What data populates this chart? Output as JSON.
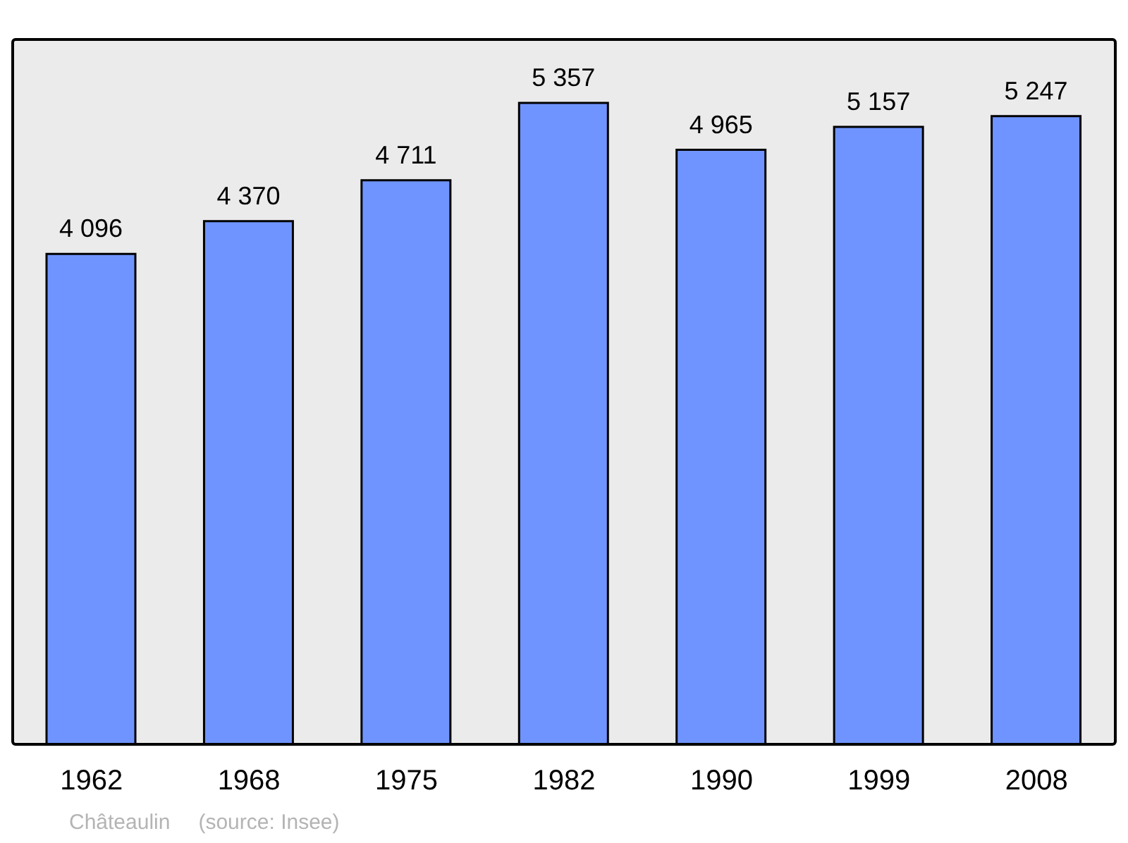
{
  "chart_data": {
    "type": "bar",
    "categories": [
      "1962",
      "1968",
      "1975",
      "1982",
      "1990",
      "1999",
      "2008"
    ],
    "values": [
      4096,
      4370,
      4711,
      5357,
      4965,
      5157,
      5247
    ],
    "value_labels": [
      "4 096",
      "4 370",
      "4 711",
      "5 357",
      "4 965",
      "5 157",
      "5 247"
    ],
    "color": "#7094ff",
    "annotations": [
      "Châteaulin",
      "(source: Insee)"
    ]
  }
}
